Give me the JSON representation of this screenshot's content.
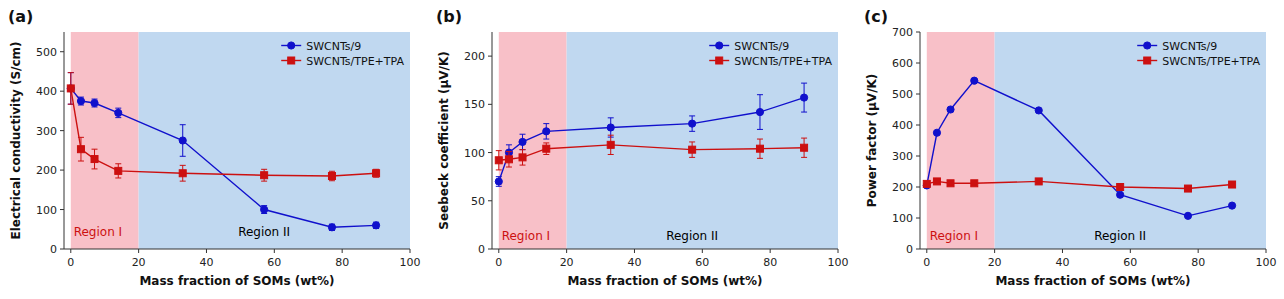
{
  "chart_data": [
    {
      "type": "line",
      "title": "(a)",
      "xlabel": "Mass fraction of SOMs (wt%)",
      "ylabel": "Electrical conductivity (S/cm)",
      "xlim": [
        -2,
        100
      ],
      "ylim": [
        0,
        550
      ],
      "xticks": [
        0,
        20,
        40,
        60,
        80,
        100
      ],
      "yticks": [
        0,
        100,
        200,
        300,
        400,
        500
      ],
      "grid": false,
      "legend": "upper right",
      "regions": [
        {
          "from": 0,
          "to": 20,
          "color": "#F8C0C8"
        },
        {
          "from": 20,
          "to": 100,
          "color": "#C0D8F0"
        }
      ],
      "annotations": [
        {
          "text": "Region I",
          "x": 8,
          "y": 33,
          "color": "#CC1010"
        },
        {
          "text": "Region II",
          "x": 57,
          "y": 33,
          "color": "#000000"
        }
      ],
      "series": [
        {
          "name": "SWCNTs/9",
          "color": "#1010CC",
          "marker": "circle",
          "line_style": "solid",
          "x": [
            0,
            3,
            7,
            14,
            33,
            57,
            77,
            90
          ],
          "values": [
            407,
            375,
            370,
            345,
            275,
            100,
            55,
            60
          ],
          "errors": [
            40,
            10,
            10,
            12,
            40,
            10,
            8,
            8
          ]
        },
        {
          "name": "SWCNTs/TPE+TPA",
          "color": "#CC1010",
          "marker": "square",
          "line_style": "solid",
          "x": [
            0,
            3,
            7,
            14,
            33,
            57,
            77,
            90
          ],
          "values": [
            407,
            253,
            228,
            198,
            192,
            187,
            185,
            192
          ],
          "errors": [
            40,
            30,
            25,
            18,
            20,
            15,
            12,
            10
          ]
        }
      ]
    },
    {
      "type": "line",
      "title": "(b)",
      "xlabel": "Mass fraction of SOMs (wt%)",
      "ylabel": "Seebeck coefficient (μV/K)",
      "xlim": [
        -2,
        100
      ],
      "ylim": [
        0,
        225
      ],
      "xticks": [
        0,
        20,
        40,
        60,
        80,
        100
      ],
      "yticks": [
        0,
        50,
        100,
        150,
        200
      ],
      "grid": false,
      "legend": "upper right",
      "regions": [
        {
          "from": 0,
          "to": 20,
          "color": "#F8C0C8"
        },
        {
          "from": 20,
          "to": 100,
          "color": "#C0D8F0"
        }
      ],
      "annotations": [
        {
          "text": "Region I",
          "x": 8,
          "y": 9,
          "color": "#CC1010"
        },
        {
          "text": "Region II",
          "x": 57,
          "y": 9,
          "color": "#000000"
        }
      ],
      "series": [
        {
          "name": "SWCNTs/9",
          "color": "#1010CC",
          "marker": "circle",
          "line_style": "solid",
          "x": [
            0,
            3,
            7,
            14,
            33,
            57,
            77,
            90
          ],
          "values": [
            70,
            100,
            111,
            122,
            126,
            130,
            142,
            157
          ],
          "errors": [
            5,
            8,
            8,
            8,
            10,
            8,
            18,
            15
          ]
        },
        {
          "name": "SWCNTs/TPE+TPA",
          "color": "#CC1010",
          "marker": "square",
          "line_style": "solid",
          "x": [
            0,
            3,
            7,
            14,
            33,
            57,
            77,
            90
          ],
          "values": [
            92,
            93,
            95,
            104,
            108,
            103,
            104,
            105
          ],
          "errors": [
            10,
            8,
            8,
            6,
            10,
            8,
            10,
            10
          ]
        }
      ]
    },
    {
      "type": "line",
      "title": "(c)",
      "xlabel": "Mass fraction of SOMs (wt%)",
      "ylabel": "Power factor (μV/K)",
      "xlim": [
        -2,
        100
      ],
      "ylim": [
        0,
        700
      ],
      "xticks": [
        0,
        20,
        40,
        60,
        80,
        100
      ],
      "yticks": [
        0,
        100,
        200,
        300,
        400,
        500,
        600,
        700
      ],
      "grid": false,
      "legend": "upper right",
      "regions": [
        {
          "from": 0,
          "to": 20,
          "color": "#F8C0C8"
        },
        {
          "from": 20,
          "to": 100,
          "color": "#C0D8F0"
        }
      ],
      "annotations": [
        {
          "text": "Region I",
          "x": 8,
          "y": 28,
          "color": "#CC1010"
        },
        {
          "text": "Region II",
          "x": 57,
          "y": 28,
          "color": "#000000"
        }
      ],
      "series": [
        {
          "name": "SWCNTs/9",
          "color": "#1010CC",
          "marker": "circle",
          "line_style": "solid",
          "x": [
            0,
            3,
            7,
            14,
            33,
            57,
            77,
            90
          ],
          "values": [
            205,
            375,
            450,
            543,
            447,
            175,
            107,
            140
          ],
          "errors": [
            0,
            0,
            0,
            0,
            0,
            0,
            0,
            0
          ]
        },
        {
          "name": "SWCNTs/TPE+TPA",
          "color": "#CC1010",
          "marker": "square",
          "line_style": "solid",
          "x": [
            0,
            3,
            7,
            14,
            33,
            57,
            77,
            90
          ],
          "values": [
            210,
            218,
            212,
            212,
            218,
            200,
            195,
            208
          ],
          "errors": [
            0,
            0,
            0,
            0,
            0,
            0,
            0,
            0
          ]
        }
      ]
    }
  ]
}
